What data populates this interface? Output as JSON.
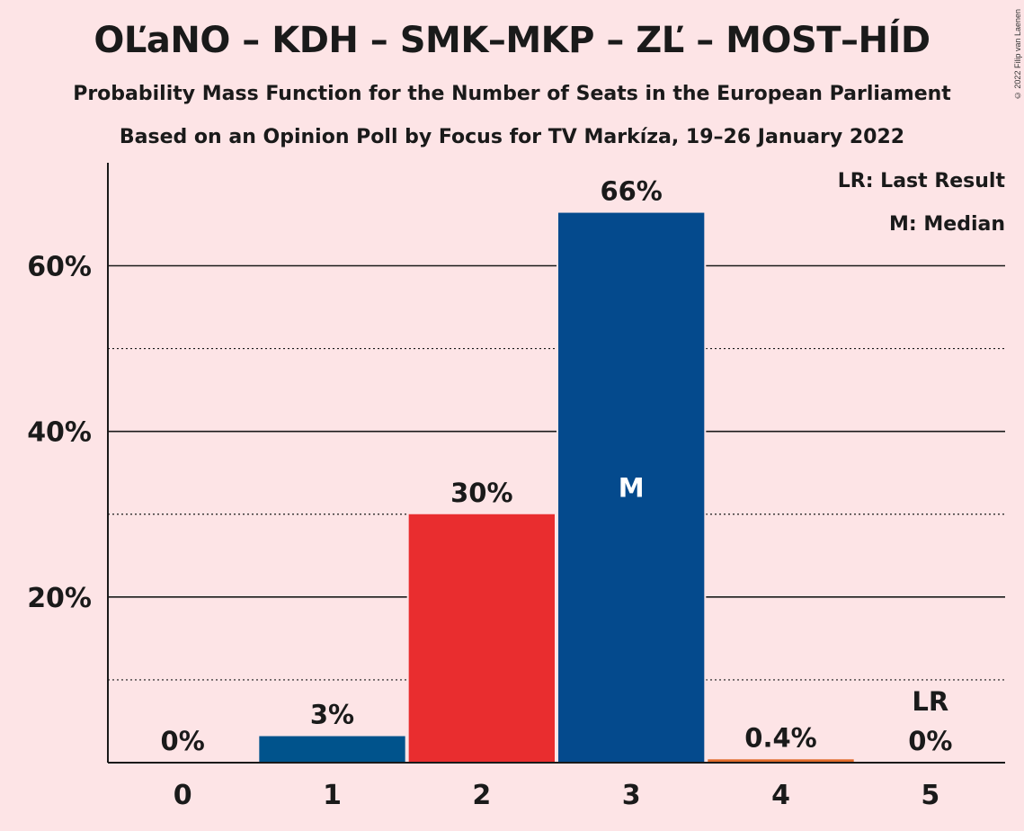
{
  "chart_data": {
    "type": "bar",
    "title": "OĽaNO – KDH – SMK–MKP – ZĽ – MOST–HÍD",
    "subtitle": "Probability Mass Function for the Number of Seats in the European Parliament",
    "subtitle2": "Based on an Opinion Poll by Focus for TV Markíza, 19–26 January 2022",
    "copyright": "© 2022 Filip van Laenen",
    "categories": [
      "0",
      "1",
      "2",
      "3",
      "4",
      "5"
    ],
    "values": [
      0,
      3.2,
      30,
      66.4,
      0.4,
      0
    ],
    "value_labels": [
      "0%",
      "3%",
      "30%",
      "66%",
      "0.4%",
      "0%"
    ],
    "bar_colors": [
      "#00538c",
      "#00538c",
      "#e92d2f",
      "#044a8d",
      "#e06a28",
      "#00538c"
    ],
    "ylim": [
      0,
      72
    ],
    "y_major_ticks": [
      20,
      40,
      60
    ],
    "y_tick_labels": [
      "20%",
      "40%",
      "60%"
    ],
    "y_minor_ticks": [
      10,
      30,
      50
    ],
    "median_index": 3,
    "median_marker": "M",
    "last_result_index": 5,
    "last_result_marker": "LR",
    "legend": [
      "LR: Last Result",
      "M: Median"
    ],
    "legend_position": "top-right"
  }
}
